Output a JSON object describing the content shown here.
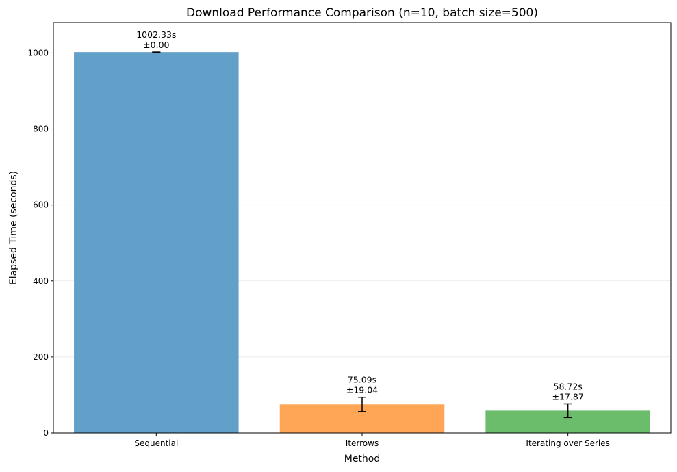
{
  "chart_data": {
    "type": "bar",
    "title": "Download Performance Comparison (n=10, batch size=500)",
    "xlabel": "Method",
    "ylabel": "Elapsed Time (seconds)",
    "categories": [
      "Sequential",
      "Iterrows",
      "Iterating over Series"
    ],
    "values": [
      1002.33,
      75.09,
      58.72
    ],
    "errors": [
      0.0,
      19.04,
      17.87
    ],
    "value_labels": [
      "1002.33s",
      "75.09s",
      "58.72s"
    ],
    "error_labels": [
      "±0.00",
      "±19.04",
      "±17.87"
    ],
    "colors": [
      "#62a0ca",
      "#ffa556",
      "#6bbc6b"
    ],
    "ylim": [
      0,
      1080
    ],
    "yticks": [
      0,
      200,
      400,
      600,
      800,
      1000
    ],
    "grid": "y",
    "legend": "none"
  }
}
